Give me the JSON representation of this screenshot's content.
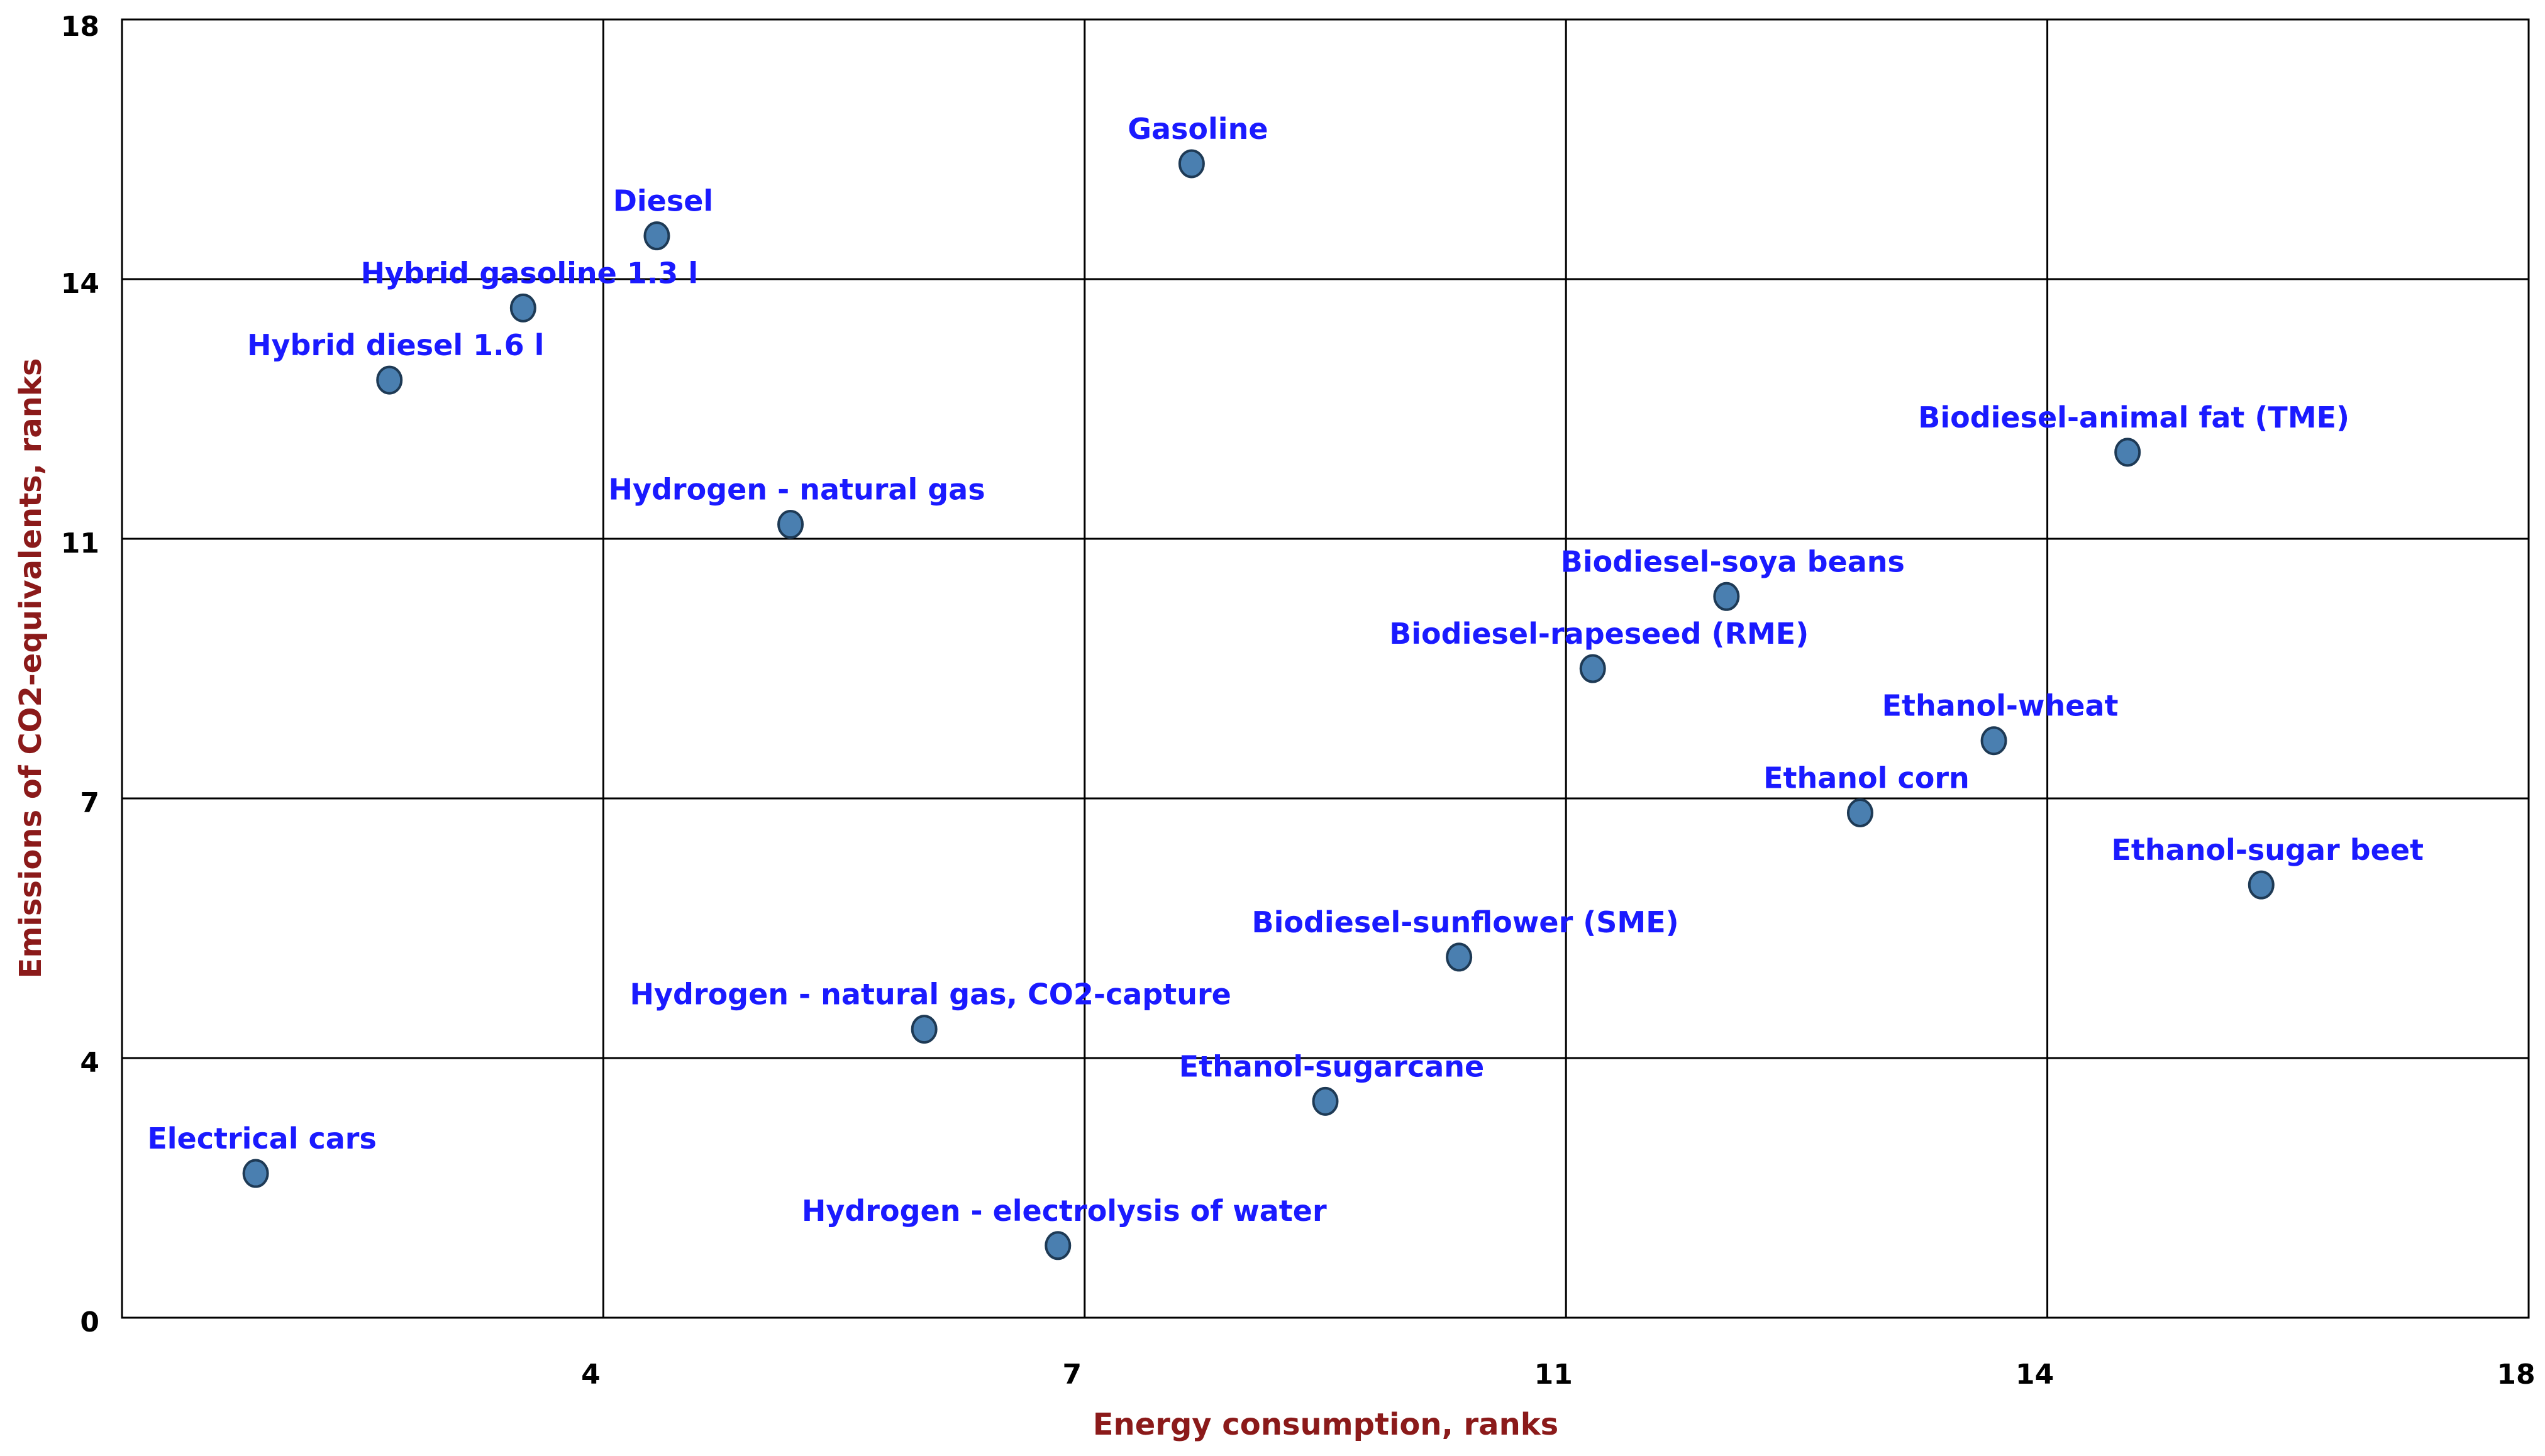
{
  "chart_data": {
    "type": "scatter",
    "x_label": "Energy consumption, ranks",
    "y_label": "Emissions of CO2-equivalents, ranks",
    "x": [
      1,
      2,
      3,
      4,
      5,
      6,
      7,
      8,
      9,
      10,
      11,
      12,
      13,
      14,
      15,
      16
    ],
    "values": [
      2,
      13,
      14,
      15,
      11,
      4,
      1,
      16,
      3,
      5,
      9,
      10,
      7,
      8,
      12,
      6
    ],
    "point_labels": [
      "Electrical cars",
      "Hybrid diesel 1.6 l",
      "Hybrid gasoline 1.3 l",
      "Diesel",
      "Hydrogen - natural gas",
      "Hydrogen - natural gas, CO2-capture",
      "Hydrogen - electrolysis of water",
      "Gasoline",
      "Ethanol-sugarcane",
      "Biodiesel-sunflower (SME)",
      "Biodiesel-rapeseed (RME)",
      "Biodiesel-soya beans",
      "Ethanol corn",
      "Ethanol-wheat",
      "Biodiesel-animal fat (TME)",
      "Ethanol-sugar beet"
    ],
    "color": "#4a7fb0",
    "label_color": "#1a1aff",
    "xlim": [
      0,
      18
    ],
    "ylim": [
      0,
      18
    ],
    "xticks": [
      {
        "value": 3.6,
        "label": "4"
      },
      {
        "value": 7.2,
        "label": "7"
      },
      {
        "value": 10.8,
        "label": "11"
      },
      {
        "value": 14.4,
        "label": "14"
      },
      18
    ],
    "yticks": [
      0,
      {
        "value": 3.6,
        "label": "4"
      },
      {
        "value": 7.2,
        "label": "7"
      },
      {
        "value": 10.8,
        "label": "11"
      },
      {
        "value": 14.4,
        "label": "14"
      },
      18
    ],
    "grid": true
  }
}
